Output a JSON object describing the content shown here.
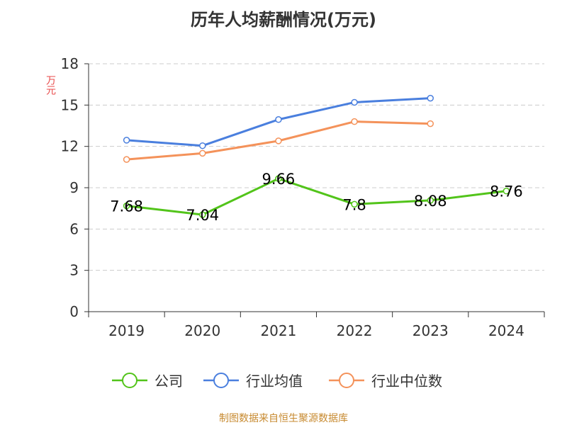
{
  "chart_data": {
    "type": "line",
    "title": "历年人均薪酬情况(万元)",
    "ylabel": "万元",
    "ylim": [
      0,
      18
    ],
    "yticks": [
      0,
      3,
      6,
      9,
      12,
      15,
      18
    ],
    "categories": [
      "2019",
      "2020",
      "2021",
      "2022",
      "2023",
      "2024"
    ],
    "series": [
      {
        "name": "公司",
        "color": "#52c41a",
        "values": [
          7.68,
          7.04,
          9.66,
          7.8,
          8.08,
          8.76
        ],
        "labels": [
          "7.68",
          "7.04",
          "9.66",
          "7.8",
          "8.08",
          "8.76"
        ]
      },
      {
        "name": "行业均值",
        "color": "#4a7fde",
        "values": [
          12.45,
          12.05,
          13.95,
          15.2,
          15.5,
          null
        ]
      },
      {
        "name": "行业中位数",
        "color": "#f4925a",
        "values": [
          11.05,
          11.5,
          12.4,
          13.8,
          13.65,
          null
        ]
      }
    ],
    "grid": true,
    "legend_position": "bottom",
    "source": "制图数据来自恒生聚源数据库",
    "colors": {
      "axis_label": "#e84a4a",
      "source": "#c78a30",
      "grid": "#cccccc",
      "axis": "#333333"
    }
  }
}
